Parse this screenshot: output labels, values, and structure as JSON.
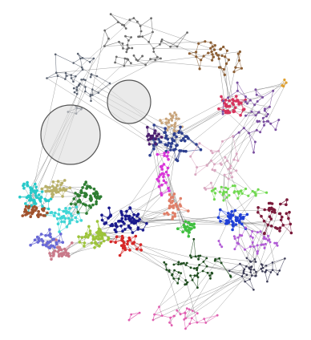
{
  "chart_data": {
    "type": "network",
    "title": "",
    "background": "#ffffff",
    "lens_overlays": [
      {
        "name": "lens-large",
        "fill": "#d9d9d9",
        "stroke": "#555555"
      },
      {
        "name": "lens-small",
        "fill": "#d9d9d9",
        "stroke": "#555555"
      }
    ],
    "clusters": [
      {
        "name": "top-gray",
        "color": "#6b6b6b",
        "accent": "#8fe6c7"
      },
      {
        "name": "left-gray",
        "color": "#5a6270"
      },
      {
        "name": "brown",
        "color": "#8b5e34"
      },
      {
        "name": "tan",
        "color": "#c8a47a"
      },
      {
        "name": "crimson",
        "color": "#d6335c"
      },
      {
        "name": "purple",
        "color": "#7a4fa0"
      },
      {
        "name": "navy",
        "color": "#2d3f8f"
      },
      {
        "name": "magenta",
        "color": "#d936d9"
      },
      {
        "name": "teal",
        "color": "#27c9c9"
      },
      {
        "name": "cyan",
        "color": "#3fd6d6"
      },
      {
        "name": "olive-green",
        "color": "#9dc43a"
      },
      {
        "name": "forest-green",
        "color": "#2e7d32"
      },
      {
        "name": "bright-green",
        "color": "#3fbf3f"
      },
      {
        "name": "dark-navy",
        "color": "#1a1a8c"
      },
      {
        "name": "blue",
        "color": "#1f3fd6"
      },
      {
        "name": "red",
        "color": "#d62828"
      },
      {
        "name": "maroon",
        "color": "#7a1a3a"
      },
      {
        "name": "rose",
        "color": "#c97a8a"
      },
      {
        "name": "salmon",
        "color": "#e0806a"
      },
      {
        "name": "lime",
        "color": "#6fd94f"
      },
      {
        "name": "orchid",
        "color": "#b15bd6"
      },
      {
        "name": "dark-green",
        "color": "#1f4d1f"
      },
      {
        "name": "slate",
        "color": "#3b3b55"
      },
      {
        "name": "light-pink",
        "color": "#d9a7c0"
      },
      {
        "name": "pink",
        "color": "#e05fb0"
      },
      {
        "name": "khaki",
        "color": "#b8b06a"
      },
      {
        "name": "brick",
        "color": "#a0522d"
      },
      {
        "name": "periwinkle",
        "color": "#6a6ad6"
      },
      {
        "name": "dark-purple",
        "color": "#4b1f6f"
      },
      {
        "name": "orange",
        "color": "#e0a030"
      }
    ]
  }
}
